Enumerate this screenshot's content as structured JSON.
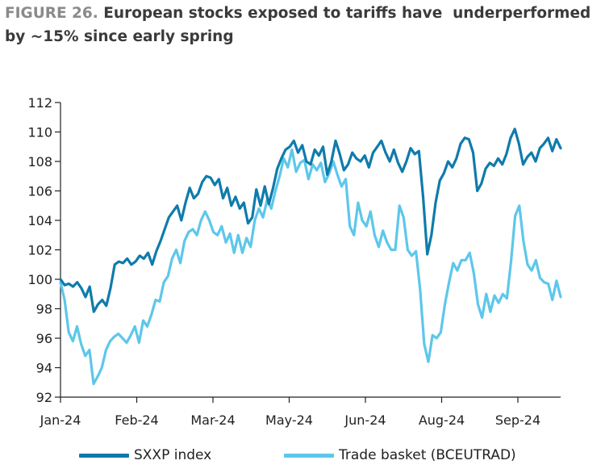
{
  "figure": {
    "number_label": "FIGURE 26.",
    "title": " European stocks exposed to tariffs have  underperformed by ~15% since early spring"
  },
  "chart_data": {
    "type": "line",
    "x_tick_labels": [
      "Jan-24",
      "Feb-24",
      "Mar-24",
      "May-24",
      "Jun-24",
      "Aug-24",
      "Sep-24"
    ],
    "y_tick_labels": [
      "92",
      "94",
      "96",
      "98",
      "100",
      "102",
      "104",
      "106",
      "108",
      "110",
      "112"
    ],
    "ylim": [
      92,
      112
    ],
    "grid": false,
    "legend_position": "bottom",
    "series": [
      {
        "name": "SXXP index",
        "color": "#0f7bab",
        "values": [
          100.0,
          99.6,
          99.7,
          99.5,
          99.8,
          99.4,
          98.8,
          99.5,
          97.8,
          98.3,
          98.6,
          98.2,
          99.4,
          101.0,
          101.2,
          101.1,
          101.4,
          101.0,
          101.2,
          101.6,
          101.4,
          101.8,
          101.0,
          101.9,
          102.6,
          103.4,
          104.2,
          104.6,
          105.0,
          104.0,
          105.2,
          106.2,
          105.5,
          105.8,
          106.6,
          107.0,
          106.9,
          106.4,
          106.8,
          105.5,
          106.2,
          105.0,
          105.6,
          104.8,
          105.2,
          103.8,
          104.2,
          106.1,
          105.0,
          106.3,
          105.1,
          106.2,
          107.5,
          108.2,
          108.8,
          109.0,
          109.4,
          108.6,
          109.1,
          108.0,
          107.8,
          108.8,
          108.4,
          109.0,
          107.1,
          108.0,
          109.4,
          108.5,
          107.4,
          107.8,
          108.6,
          108.2,
          108.0,
          108.4,
          107.6,
          108.6,
          109.0,
          109.4,
          108.6,
          108.0,
          108.8,
          107.9,
          107.3,
          108.0,
          108.9,
          108.5,
          108.7,
          105.6,
          101.7,
          103.0,
          105.2,
          106.7,
          107.2,
          108.0,
          107.6,
          108.2,
          109.2,
          109.6,
          109.5,
          108.6,
          106.0,
          106.5,
          107.5,
          107.9,
          107.7,
          108.2,
          107.8,
          108.5,
          109.6,
          110.2,
          109.2,
          107.8,
          108.3,
          108.6,
          108.0,
          108.9,
          109.2,
          109.6,
          108.7,
          109.5,
          108.9
        ]
      },
      {
        "name": "Trade basket (BCEUTRAD)",
        "color": "#5dc7ea",
        "values": [
          99.8,
          98.6,
          96.4,
          95.8,
          96.8,
          95.6,
          94.8,
          95.2,
          92.9,
          93.4,
          94.0,
          95.2,
          95.8,
          96.1,
          96.3,
          96.0,
          95.7,
          96.2,
          96.8,
          95.7,
          97.2,
          96.8,
          97.6,
          98.6,
          98.5,
          99.8,
          100.2,
          101.4,
          102.0,
          101.1,
          102.6,
          103.2,
          103.4,
          103.0,
          104.0,
          104.6,
          104.0,
          103.2,
          103.0,
          103.6,
          102.5,
          103.1,
          101.8,
          103.0,
          101.8,
          102.8,
          102.2,
          104.0,
          104.8,
          104.2,
          105.4,
          104.8,
          106.0,
          107.0,
          108.2,
          107.6,
          108.8,
          107.3,
          107.9,
          108.1,
          106.8,
          107.8,
          107.4,
          107.9,
          106.6,
          107.2,
          108.0,
          107.1,
          106.3,
          106.8,
          103.6,
          103.0,
          105.2,
          104.0,
          103.6,
          104.6,
          103.0,
          102.2,
          103.3,
          102.5,
          102.0,
          102.0,
          105.0,
          104.2,
          102.0,
          101.6,
          101.9,
          99.3,
          95.6,
          94.4,
          96.2,
          96.0,
          96.4,
          98.3,
          99.8,
          101.1,
          100.6,
          101.3,
          101.3,
          101.8,
          100.4,
          98.3,
          97.4,
          99.0,
          97.8,
          98.9,
          98.4,
          99.0,
          98.7,
          101.2,
          104.3,
          105.0,
          102.6,
          101.0,
          100.6,
          101.3,
          100.1,
          99.8,
          99.7,
          98.6,
          99.9,
          98.8
        ]
      }
    ]
  }
}
